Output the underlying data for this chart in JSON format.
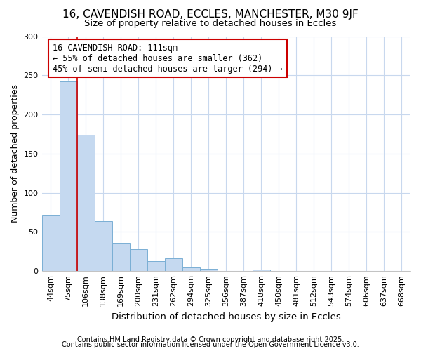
{
  "title1": "16, CAVENDISH ROAD, ECCLES, MANCHESTER, M30 9JF",
  "title2": "Size of property relative to detached houses in Eccles",
  "xlabel": "Distribution of detached houses by size in Eccles",
  "ylabel": "Number of detached properties",
  "categories": [
    "44sqm",
    "75sqm",
    "106sqm",
    "138sqm",
    "169sqm",
    "200sqm",
    "231sqm",
    "262sqm",
    "294sqm",
    "325sqm",
    "356sqm",
    "387sqm",
    "418sqm",
    "450sqm",
    "481sqm",
    "512sqm",
    "543sqm",
    "574sqm",
    "606sqm",
    "637sqm",
    "668sqm"
  ],
  "values": [
    72,
    242,
    174,
    64,
    36,
    28,
    13,
    16,
    5,
    3,
    0,
    0,
    2,
    0,
    0,
    0,
    0,
    0,
    0,
    0,
    0
  ],
  "bar_color": "#c5d9f0",
  "bar_edge_color": "#7aafd4",
  "highlight_index": 2,
  "highlight_color": "#cc0000",
  "annotation_text": "16 CAVENDISH ROAD: 111sqm\n← 55% of detached houses are smaller (362)\n45% of semi-detached houses are larger (294) →",
  "annotation_box_color": "#cc0000",
  "ylim": [
    0,
    300
  ],
  "yticks": [
    0,
    50,
    100,
    150,
    200,
    250,
    300
  ],
  "footnote1": "Contains HM Land Registry data © Crown copyright and database right 2025.",
  "footnote2": "Contains public sector information licensed under the Open Government Licence v3.0.",
  "bg_color": "#ffffff",
  "grid_color": "#c8d8ee",
  "title1_fontsize": 11,
  "title2_fontsize": 9.5,
  "axis_label_fontsize": 9,
  "tick_fontsize": 8,
  "annotation_fontsize": 8.5,
  "footnote_fontsize": 7
}
